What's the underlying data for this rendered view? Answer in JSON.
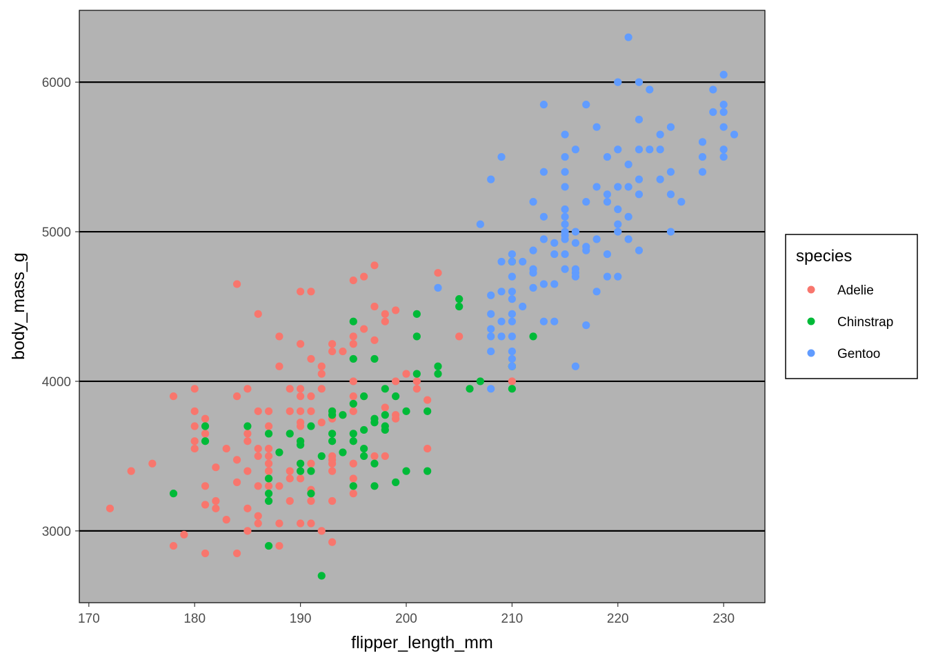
{
  "chart_data": {
    "type": "scatter",
    "xlabel": "flipper_length_mm",
    "ylabel": "body_mass_g",
    "xlim": [
      169.1,
      233.9
    ],
    "ylim": [
      2520,
      6480
    ],
    "x_ticks": [
      170,
      180,
      190,
      200,
      210,
      220,
      230
    ],
    "y_ticks": [
      3000,
      4000,
      5000,
      6000
    ],
    "grid": "horizontal major lines only",
    "panel_background": "#b3b3b3",
    "legend": {
      "title": "species",
      "position": "right",
      "entries": [
        "Adelie",
        "Chinstrap",
        "Gentoo"
      ]
    },
    "series": [
      {
        "name": "Adelie",
        "color": "#f8766d",
        "points": [
          [
            172,
            3150
          ],
          [
            174,
            3400
          ],
          [
            176,
            3450
          ],
          [
            178,
            3900
          ],
          [
            178,
            2900
          ],
          [
            179,
            2975
          ],
          [
            180,
            3950
          ],
          [
            180,
            3800
          ],
          [
            180,
            3700
          ],
          [
            180,
            3600
          ],
          [
            180,
            3550
          ],
          [
            181,
            3750
          ],
          [
            181,
            3650
          ],
          [
            181,
            3300
          ],
          [
            181,
            3175
          ],
          [
            181,
            2850
          ],
          [
            182,
            3425
          ],
          [
            182,
            3200
          ],
          [
            182,
            3150
          ],
          [
            183,
            3550
          ],
          [
            183,
            3075
          ],
          [
            184,
            4650
          ],
          [
            184,
            3900
          ],
          [
            184,
            3475
          ],
          [
            184,
            3325
          ],
          [
            184,
            2850
          ],
          [
            185,
            3950
          ],
          [
            185,
            3650
          ],
          [
            185,
            3600
          ],
          [
            185,
            3400
          ],
          [
            185,
            3150
          ],
          [
            185,
            3000
          ],
          [
            186,
            4450
          ],
          [
            186,
            3800
          ],
          [
            186,
            3550
          ],
          [
            186,
            3500
          ],
          [
            186,
            3300
          ],
          [
            186,
            3100
          ],
          [
            186,
            3050
          ],
          [
            187,
            3800
          ],
          [
            187,
            3700
          ],
          [
            187,
            3550
          ],
          [
            187,
            3500
          ],
          [
            187,
            3450
          ],
          [
            187,
            3400
          ],
          [
            187,
            3300
          ],
          [
            188,
            4300
          ],
          [
            188,
            4100
          ],
          [
            188,
            3300
          ],
          [
            188,
            3050
          ],
          [
            188,
            2900
          ],
          [
            189,
            3950
          ],
          [
            189,
            3800
          ],
          [
            189,
            3400
          ],
          [
            189,
            3350
          ],
          [
            189,
            3200
          ],
          [
            190,
            4600
          ],
          [
            190,
            4250
          ],
          [
            190,
            3950
          ],
          [
            190,
            3900
          ],
          [
            190,
            3800
          ],
          [
            190,
            3725
          ],
          [
            190,
            3700
          ],
          [
            190,
            3600
          ],
          [
            190,
            3450
          ],
          [
            190,
            3350
          ],
          [
            190,
            3050
          ],
          [
            191,
            4600
          ],
          [
            191,
            4150
          ],
          [
            191,
            3900
          ],
          [
            191,
            3800
          ],
          [
            191,
            3450
          ],
          [
            191,
            3275
          ],
          [
            191,
            3200
          ],
          [
            191,
            3050
          ],
          [
            192,
            4100
          ],
          [
            192,
            4050
          ],
          [
            192,
            3950
          ],
          [
            192,
            3725
          ],
          [
            192,
            3000
          ],
          [
            193,
            4250
          ],
          [
            193,
            4200
          ],
          [
            193,
            3800
          ],
          [
            193,
            3750
          ],
          [
            193,
            3500
          ],
          [
            193,
            3475
          ],
          [
            193,
            3450
          ],
          [
            193,
            3400
          ],
          [
            193,
            3200
          ],
          [
            193,
            2925
          ],
          [
            194,
            4200
          ],
          [
            194,
            3775
          ],
          [
            195,
            4675
          ],
          [
            195,
            4300
          ],
          [
            195,
            4250
          ],
          [
            195,
            4000
          ],
          [
            195,
            3900
          ],
          [
            195,
            3800
          ],
          [
            195,
            3450
          ],
          [
            195,
            3350
          ],
          [
            195,
            3300
          ],
          [
            195,
            3250
          ],
          [
            196,
            4700
          ],
          [
            196,
            4350
          ],
          [
            196,
            3900
          ],
          [
            197,
            4775
          ],
          [
            197,
            4500
          ],
          [
            197,
            4275
          ],
          [
            197,
            3500
          ],
          [
            198,
            4450
          ],
          [
            198,
            4400
          ],
          [
            198,
            3825
          ],
          [
            198,
            3500
          ],
          [
            199,
            4475
          ],
          [
            199,
            4000
          ],
          [
            199,
            3775
          ],
          [
            199,
            3750
          ],
          [
            200,
            4050
          ],
          [
            201,
            4000
          ],
          [
            201,
            3950
          ],
          [
            202,
            3875
          ],
          [
            202,
            3550
          ],
          [
            203,
            4725
          ],
          [
            205,
            4300
          ],
          [
            210,
            4000
          ]
        ]
      },
      {
        "name": "Chinstrap",
        "color": "#00ba38",
        "points": [
          [
            178,
            3250
          ],
          [
            181,
            3700
          ],
          [
            181,
            3600
          ],
          [
            185,
            3700
          ],
          [
            187,
            3650
          ],
          [
            187,
            3350
          ],
          [
            187,
            3250
          ],
          [
            187,
            3200
          ],
          [
            187,
            2900
          ],
          [
            188,
            3525
          ],
          [
            189,
            3650
          ],
          [
            190,
            3600
          ],
          [
            190,
            3575
          ],
          [
            190,
            3450
          ],
          [
            190,
            3400
          ],
          [
            191,
            3700
          ],
          [
            191,
            3400
          ],
          [
            191,
            3250
          ],
          [
            192,
            3500
          ],
          [
            192,
            2700
          ],
          [
            193,
            3800
          ],
          [
            193,
            3775
          ],
          [
            193,
            3650
          ],
          [
            193,
            3600
          ],
          [
            194,
            3775
          ],
          [
            194,
            3525
          ],
          [
            195,
            4400
          ],
          [
            195,
            4150
          ],
          [
            195,
            3850
          ],
          [
            195,
            3650
          ],
          [
            195,
            3600
          ],
          [
            195,
            3300
          ],
          [
            196,
            3900
          ],
          [
            196,
            3675
          ],
          [
            196,
            3550
          ],
          [
            196,
            3500
          ],
          [
            197,
            4150
          ],
          [
            197,
            3750
          ],
          [
            197,
            3725
          ],
          [
            197,
            3450
          ],
          [
            197,
            3300
          ],
          [
            198,
            3950
          ],
          [
            198,
            3775
          ],
          [
            198,
            3700
          ],
          [
            198,
            3675
          ],
          [
            199,
            3900
          ],
          [
            199,
            3325
          ],
          [
            200,
            3800
          ],
          [
            200,
            3400
          ],
          [
            201,
            4450
          ],
          [
            201,
            4300
          ],
          [
            201,
            4050
          ],
          [
            202,
            3800
          ],
          [
            202,
            3400
          ],
          [
            203,
            4100
          ],
          [
            203,
            4050
          ],
          [
            205,
            4550
          ],
          [
            205,
            4500
          ],
          [
            206,
            3950
          ],
          [
            207,
            4000
          ],
          [
            210,
            4800
          ],
          [
            210,
            4100
          ],
          [
            210,
            3950
          ],
          [
            212,
            4300
          ]
        ]
      },
      {
        "name": "Gentoo",
        "color": "#619cff",
        "points": [
          [
            203,
            4625
          ],
          [
            207,
            5050
          ],
          [
            208,
            5350
          ],
          [
            208,
            4575
          ],
          [
            208,
            4450
          ],
          [
            208,
            4350
          ],
          [
            208,
            4300
          ],
          [
            208,
            4200
          ],
          [
            208,
            3950
          ],
          [
            209,
            5500
          ],
          [
            209,
            4800
          ],
          [
            209,
            4600
          ],
          [
            209,
            4400
          ],
          [
            209,
            4300
          ],
          [
            210,
            4850
          ],
          [
            210,
            4800
          ],
          [
            210,
            4700
          ],
          [
            210,
            4600
          ],
          [
            210,
            4550
          ],
          [
            210,
            4450
          ],
          [
            210,
            4400
          ],
          [
            210,
            4300
          ],
          [
            210,
            4200
          ],
          [
            210,
            4150
          ],
          [
            210,
            4100
          ],
          [
            211,
            4800
          ],
          [
            211,
            4500
          ],
          [
            212,
            5200
          ],
          [
            212,
            4875
          ],
          [
            212,
            4750
          ],
          [
            212,
            4725
          ],
          [
            212,
            4625
          ],
          [
            213,
            5850
          ],
          [
            213,
            5400
          ],
          [
            213,
            5100
          ],
          [
            213,
            4950
          ],
          [
            213,
            4650
          ],
          [
            213,
            4400
          ],
          [
            214,
            4925
          ],
          [
            214,
            4850
          ],
          [
            214,
            4650
          ],
          [
            214,
            4400
          ],
          [
            215,
            5650
          ],
          [
            215,
            5500
          ],
          [
            215,
            5400
          ],
          [
            215,
            5300
          ],
          [
            215,
            5150
          ],
          [
            215,
            5100
          ],
          [
            215,
            5050
          ],
          [
            215,
            5000
          ],
          [
            215,
            4975
          ],
          [
            215,
            4950
          ],
          [
            215,
            4850
          ],
          [
            215,
            4750
          ],
          [
            216,
            5550
          ],
          [
            216,
            5000
          ],
          [
            216,
            4925
          ],
          [
            216,
            4750
          ],
          [
            216,
            4725
          ],
          [
            216,
            4700
          ],
          [
            216,
            4100
          ],
          [
            217,
            5850
          ],
          [
            217,
            5200
          ],
          [
            217,
            4900
          ],
          [
            217,
            4875
          ],
          [
            217,
            4375
          ],
          [
            218,
            5700
          ],
          [
            218,
            5300
          ],
          [
            218,
            4950
          ],
          [
            218,
            4600
          ],
          [
            219,
            5500
          ],
          [
            219,
            5250
          ],
          [
            219,
            5200
          ],
          [
            219,
            4850
          ],
          [
            219,
            4700
          ],
          [
            220,
            6000
          ],
          [
            220,
            5550
          ],
          [
            220,
            5300
          ],
          [
            220,
            5150
          ],
          [
            220,
            5050
          ],
          [
            220,
            5000
          ],
          [
            220,
            4700
          ],
          [
            221,
            6300
          ],
          [
            221,
            5450
          ],
          [
            221,
            5300
          ],
          [
            221,
            5100
          ],
          [
            221,
            4950
          ],
          [
            222,
            6000
          ],
          [
            222,
            5750
          ],
          [
            222,
            5550
          ],
          [
            222,
            5350
          ],
          [
            222,
            5250
          ],
          [
            222,
            4875
          ],
          [
            223,
            5950
          ],
          [
            223,
            5550
          ],
          [
            224,
            5650
          ],
          [
            224,
            5550
          ],
          [
            224,
            5350
          ],
          [
            225,
            5700
          ],
          [
            225,
            5400
          ],
          [
            225,
            5250
          ],
          [
            225,
            5000
          ],
          [
            226,
            5200
          ],
          [
            228,
            5600
          ],
          [
            228,
            5500
          ],
          [
            228,
            5400
          ],
          [
            229,
            5950
          ],
          [
            229,
            5800
          ],
          [
            230,
            6050
          ],
          [
            230,
            5850
          ],
          [
            230,
            5800
          ],
          [
            230,
            5700
          ],
          [
            230,
            5550
          ],
          [
            230,
            5500
          ],
          [
            231,
            5650
          ]
        ]
      }
    ]
  }
}
